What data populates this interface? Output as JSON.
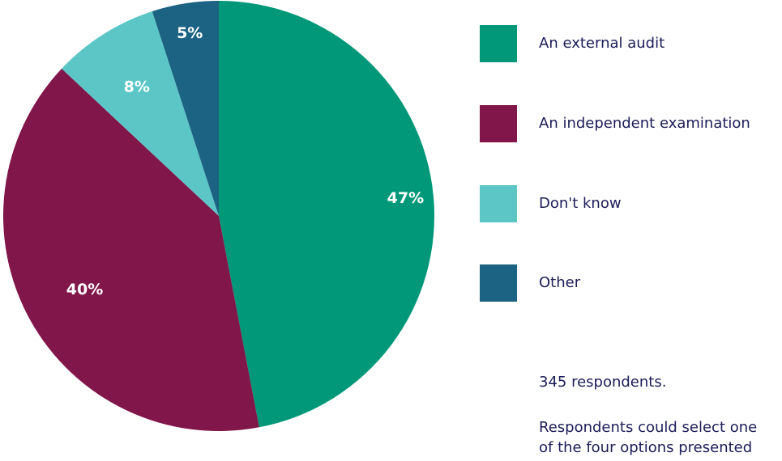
{
  "chart_data": {
    "type": "pie",
    "categories": [
      "An external audit",
      "An independent examination",
      "Don't know",
      "Other"
    ],
    "values": [
      47,
      40,
      8,
      5
    ],
    "value_labels": [
      "47%",
      "40%",
      "8%",
      "5%"
    ],
    "colors": [
      "#009878",
      "#80164a",
      "#5cc6c7",
      "#1c6282"
    ],
    "legend_position": "right"
  },
  "notes": {
    "respondents": "345 respondents.",
    "selection_line1": "Respondents could select one",
    "selection_line2": "of the four options presented"
  }
}
